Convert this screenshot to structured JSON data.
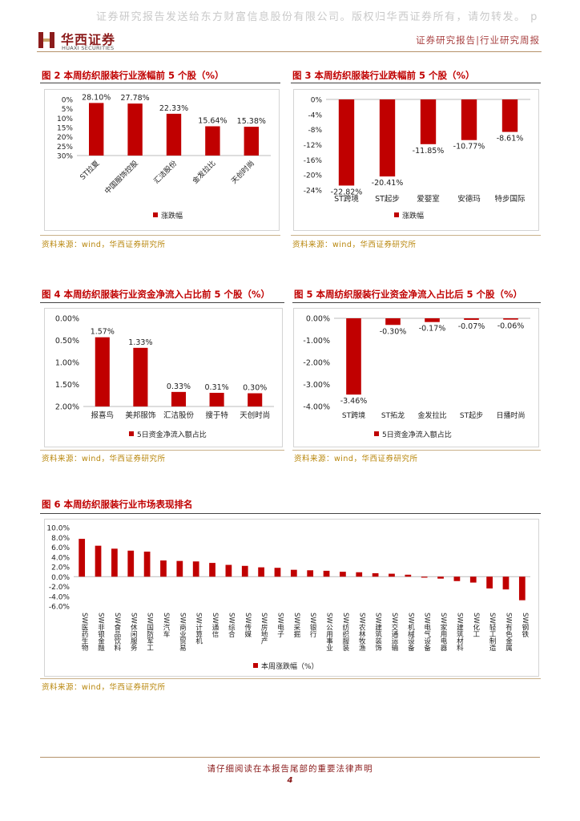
{
  "watermark": "证券研究报告发送给东方财富信息股份有限公司。版权归华西证券所有，请勿转发。 p",
  "header": {
    "logo_cn": "华西证券",
    "logo_en": "HUAXI SECURITIES",
    "right_text": "证券研究报告|行业研究周报"
  },
  "source_text": "资料来源：wind，华西证券研究所",
  "footer": {
    "disclaimer": "请仔细阅读在本报告尾部的重要法律声明",
    "page": "4"
  },
  "colors": {
    "bar": "#c00000",
    "accent": "#8c1c1c"
  },
  "figures": {
    "fig2": {
      "title": "图 2 本周纺织服装行业涨幅前 5 个股（%）"
    },
    "fig3": {
      "title": "图 3 本周纺织服装行业跌幅前 5 个股（%）"
    },
    "fig4": {
      "title": "图 4 本周纺织服装行业资金净流入占比前 5 个股（%）"
    },
    "fig5": {
      "title": "图 5 本周纺织服装行业资金净流入占比后 5 个股（%）"
    },
    "fig6": {
      "title": "图 6 本周纺织服装行业市场表现排名"
    }
  },
  "chart_data": [
    {
      "id": "fig2",
      "type": "bar",
      "categories": [
        "ST拉夏",
        "中国服饰控股",
        "汇洁股份",
        "金发拉比",
        "天创时尚"
      ],
      "values": [
        28.1,
        27.78,
        22.33,
        15.64,
        15.38
      ],
      "value_labels": [
        "28.10%",
        "27.78%",
        "22.33%",
        "15.64%",
        "15.38%"
      ],
      "yticks": [
        "0%",
        "5%",
        "10%",
        "15%",
        "20%",
        "25%",
        "30%"
      ],
      "ylim": [
        0,
        30
      ],
      "legend": "涨跌幅",
      "legend_position": "bottom-left",
      "grid": false
    },
    {
      "id": "fig3",
      "type": "bar",
      "categories": [
        "ST跨境",
        "ST起步",
        "爱婴室",
        "安德玛",
        "特步国际"
      ],
      "values": [
        -22.82,
        -20.41,
        -11.85,
        -10.77,
        -8.61
      ],
      "value_labels": [
        "-22.82%",
        "-20.41%",
        "-11.85%",
        "-10.77%",
        "-8.61%"
      ],
      "yticks": [
        "0%",
        "-4%",
        "-8%",
        "-12%",
        "-16%",
        "-20%",
        "-24%"
      ],
      "ylim": [
        -24,
        0
      ],
      "legend": "涨跌幅",
      "legend_position": "bottom-left",
      "grid": false
    },
    {
      "id": "fig4",
      "type": "bar",
      "categories": [
        "报喜鸟",
        "美邦服饰",
        "汇洁股份",
        "搜于特",
        "天创时尚"
      ],
      "values": [
        1.57,
        1.33,
        0.33,
        0.31,
        0.3
      ],
      "value_labels": [
        "1.57%",
        "1.33%",
        "0.33%",
        "0.31%",
        "0.30%"
      ],
      "yticks": [
        "0.00%",
        "0.50%",
        "1.00%",
        "1.50%",
        "2.00%"
      ],
      "ylim": [
        0,
        2
      ],
      "legend": "5日资金净流入额占比",
      "legend_position": "bottom-left",
      "grid": false
    },
    {
      "id": "fig5",
      "type": "bar",
      "categories": [
        "ST跨境",
        "ST拓龙",
        "金发拉比",
        "ST起步",
        "日播时尚"
      ],
      "values": [
        -3.46,
        -0.3,
        -0.17,
        -0.07,
        -0.06
      ],
      "value_labels": [
        "-3.46%",
        "-0.30%",
        "-0.17%",
        "-0.07%",
        "-0.06%"
      ],
      "yticks": [
        "0.00%",
        "-1.00%",
        "-2.00%",
        "-3.00%",
        "-4.00%"
      ],
      "ylim": [
        -4,
        0
      ],
      "legend": "5日资金净流入额占比",
      "legend_position": "bottom-left",
      "grid": false
    },
    {
      "id": "fig6",
      "type": "bar",
      "categories": [
        "SW医药生物",
        "SW非银金融",
        "SW食品饮料",
        "SW休闲服务",
        "SW国防军工",
        "SW汽车",
        "SW商业贸易",
        "SW计算机",
        "SW通信",
        "SW综合",
        "SW传媒",
        "SW房地产",
        "SW电子",
        "SW采掘",
        "SW银行",
        "SW公用事业",
        "SW纺织服装",
        "SW农林牧渔",
        "SW建筑装饰",
        "SW交通运输",
        "SW机械设备",
        "SW电气设备",
        "SW家用电器",
        "SW建筑材料",
        "SW化工",
        "SW轻工制造",
        "SW有色金属",
        "SW钢铁"
      ],
      "values": [
        7.7,
        6.3,
        5.7,
        5.3,
        5.1,
        3.3,
        3.2,
        3.1,
        2.8,
        2.4,
        2.2,
        1.9,
        1.8,
        1.4,
        1.3,
        1.2,
        1.0,
        0.9,
        0.7,
        0.6,
        0.4,
        -0.2,
        -0.4,
        -0.9,
        -1.2,
        -2.4,
        -2.6,
        -4.8
      ],
      "yticks": [
        "10.0%",
        "8.0%",
        "6.0%",
        "4.0%",
        "2.0%",
        "0.0%",
        "-2.0%",
        "-4.0%",
        "-6.0%"
      ],
      "ylim": [
        -6,
        10
      ],
      "legend": "本周涨跌幅（%）",
      "legend_position": "bottom-center",
      "grid": false
    }
  ]
}
